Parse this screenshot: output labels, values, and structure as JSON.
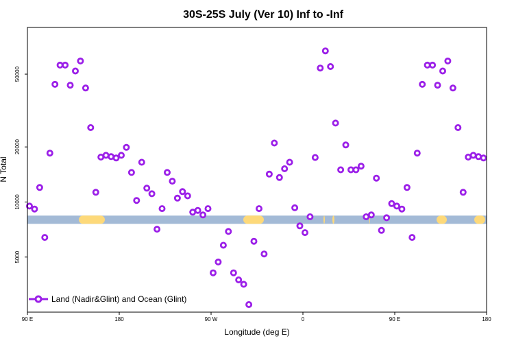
{
  "chart_data": {
    "type": "scatter",
    "title": "30S-25S July (Ver 10)   Inf to -Inf",
    "xlabel": "Longitude (deg E)",
    "ylabel": "N Total",
    "x_scale": "linear",
    "y_scale": "log",
    "xlim": [
      90,
      540
    ],
    "ylim": [
      2500,
      90000
    ],
    "x_ticks": [
      {
        "value": 90,
        "label": "90 E"
      },
      {
        "value": 180,
        "label": "180"
      },
      {
        "value": 270,
        "label": "90 W"
      },
      {
        "value": 360,
        "label": "0"
      },
      {
        "value": 450,
        "label": "90 E"
      },
      {
        "value": 540,
        "label": "180"
      }
    ],
    "y_ticks": [
      {
        "value": 5000,
        "label": "5000"
      },
      {
        "value": 10000,
        "label": "10000"
      },
      {
        "value": 20000,
        "label": "20000"
      },
      {
        "value": 50000,
        "label": "50000"
      }
    ],
    "band": {
      "y": 8000,
      "color": "#a3bad6",
      "land_color": "#fdd97a",
      "land_segments": [
        [
          115,
          153
        ],
        [
          355,
          385
        ],
        [
          472,
          474
        ],
        [
          485,
          488
        ],
        [
          539,
          540
        ],
        [
          637,
          652
        ],
        [
          692,
          708
        ]
      ]
    },
    "series": [
      {
        "name": "Land (Nadir&Glint) and Ocean (Glint)",
        "color": "#9b1fe8",
        "points": [
          {
            "x": 92,
            "y": 9500
          },
          {
            "x": 97,
            "y": 9150
          },
          {
            "x": 102,
            "y": 12000
          },
          {
            "x": 107,
            "y": 6400
          },
          {
            "x": 112,
            "y": 18500
          },
          {
            "x": 117,
            "y": 44000
          },
          {
            "x": 122,
            "y": 56000
          },
          {
            "x": 127,
            "y": 56000
          },
          {
            "x": 132,
            "y": 43500
          },
          {
            "x": 137,
            "y": 52000
          },
          {
            "x": 142,
            "y": 59000
          },
          {
            "x": 147,
            "y": 42000
          },
          {
            "x": 152,
            "y": 25500
          },
          {
            "x": 157,
            "y": 11300
          },
          {
            "x": 162,
            "y": 17600
          },
          {
            "x": 167,
            "y": 18000
          },
          {
            "x": 172,
            "y": 17700
          },
          {
            "x": 177,
            "y": 17400
          },
          {
            "x": 182,
            "y": 18000
          },
          {
            "x": 187,
            "y": 19900
          },
          {
            "x": 192,
            "y": 14500
          },
          {
            "x": 197,
            "y": 10200
          },
          {
            "x": 202,
            "y": 16500
          },
          {
            "x": 207,
            "y": 11900
          },
          {
            "x": 212,
            "y": 11100
          },
          {
            "x": 217,
            "y": 7100
          },
          {
            "x": 222,
            "y": 9200
          },
          {
            "x": 227,
            "y": 14500
          },
          {
            "x": 232,
            "y": 13000
          },
          {
            "x": 237,
            "y": 10500
          },
          {
            "x": 242,
            "y": 11400
          },
          {
            "x": 247,
            "y": 10800
          },
          {
            "x": 252,
            "y": 8800
          },
          {
            "x": 257,
            "y": 9000
          },
          {
            "x": 262,
            "y": 8500
          },
          {
            "x": 267,
            "y": 9200
          },
          {
            "x": 272,
            "y": 4100
          },
          {
            "x": 277,
            "y": 4700
          },
          {
            "x": 282,
            "y": 5800
          },
          {
            "x": 287,
            "y": 6900
          },
          {
            "x": 292,
            "y": 4100
          },
          {
            "x": 297,
            "y": 3750
          },
          {
            "x": 302,
            "y": 3550
          },
          {
            "x": 307,
            "y": 2750
          },
          {
            "x": 312,
            "y": 6100
          },
          {
            "x": 317,
            "y": 9200
          },
          {
            "x": 322,
            "y": 5200
          },
          {
            "x": 327,
            "y": 14200
          },
          {
            "x": 332,
            "y": 21000
          },
          {
            "x": 337,
            "y": 13600
          },
          {
            "x": 342,
            "y": 15200
          },
          {
            "x": 347,
            "y": 16500
          },
          {
            "x": 352,
            "y": 9300
          },
          {
            "x": 357,
            "y": 7400
          },
          {
            "x": 362,
            "y": 6800
          },
          {
            "x": 367,
            "y": 8300
          },
          {
            "x": 372,
            "y": 17500
          },
          {
            "x": 377,
            "y": 54000
          },
          {
            "x": 382,
            "y": 67000
          },
          {
            "x": 387,
            "y": 55000
          },
          {
            "x": 392,
            "y": 27000
          },
          {
            "x": 397,
            "y": 15000
          },
          {
            "x": 402,
            "y": 20500
          },
          {
            "x": 407,
            "y": 15000
          },
          {
            "x": 412,
            "y": 15000
          },
          {
            "x": 417,
            "y": 15700
          },
          {
            "x": 422,
            "y": 8300
          },
          {
            "x": 427,
            "y": 8500
          },
          {
            "x": 432,
            "y": 13500
          },
          {
            "x": 437,
            "y": 7000
          },
          {
            "x": 442,
            "y": 8200
          },
          {
            "x": 447,
            "y": 9800
          },
          {
            "x": 452,
            "y": 9500
          },
          {
            "x": 457,
            "y": 9150
          },
          {
            "x": 462,
            "y": 12000
          },
          {
            "x": 467,
            "y": 6400
          },
          {
            "x": 472,
            "y": 18500
          },
          {
            "x": 477,
            "y": 44000
          },
          {
            "x": 482,
            "y": 56000
          },
          {
            "x": 487,
            "y": 56000
          },
          {
            "x": 492,
            "y": 43500
          },
          {
            "x": 497,
            "y": 52000
          },
          {
            "x": 502,
            "y": 59000
          },
          {
            "x": 507,
            "y": 42000
          },
          {
            "x": 512,
            "y": 25500
          },
          {
            "x": 517,
            "y": 11300
          },
          {
            "x": 522,
            "y": 17600
          },
          {
            "x": 527,
            "y": 18000
          },
          {
            "x": 532,
            "y": 17700
          },
          {
            "x": 537,
            "y": 17400
          }
        ]
      }
    ],
    "legend": {
      "position": "bottom-left",
      "label": "Land (Nadir&Glint) and Ocean (Glint)"
    }
  }
}
